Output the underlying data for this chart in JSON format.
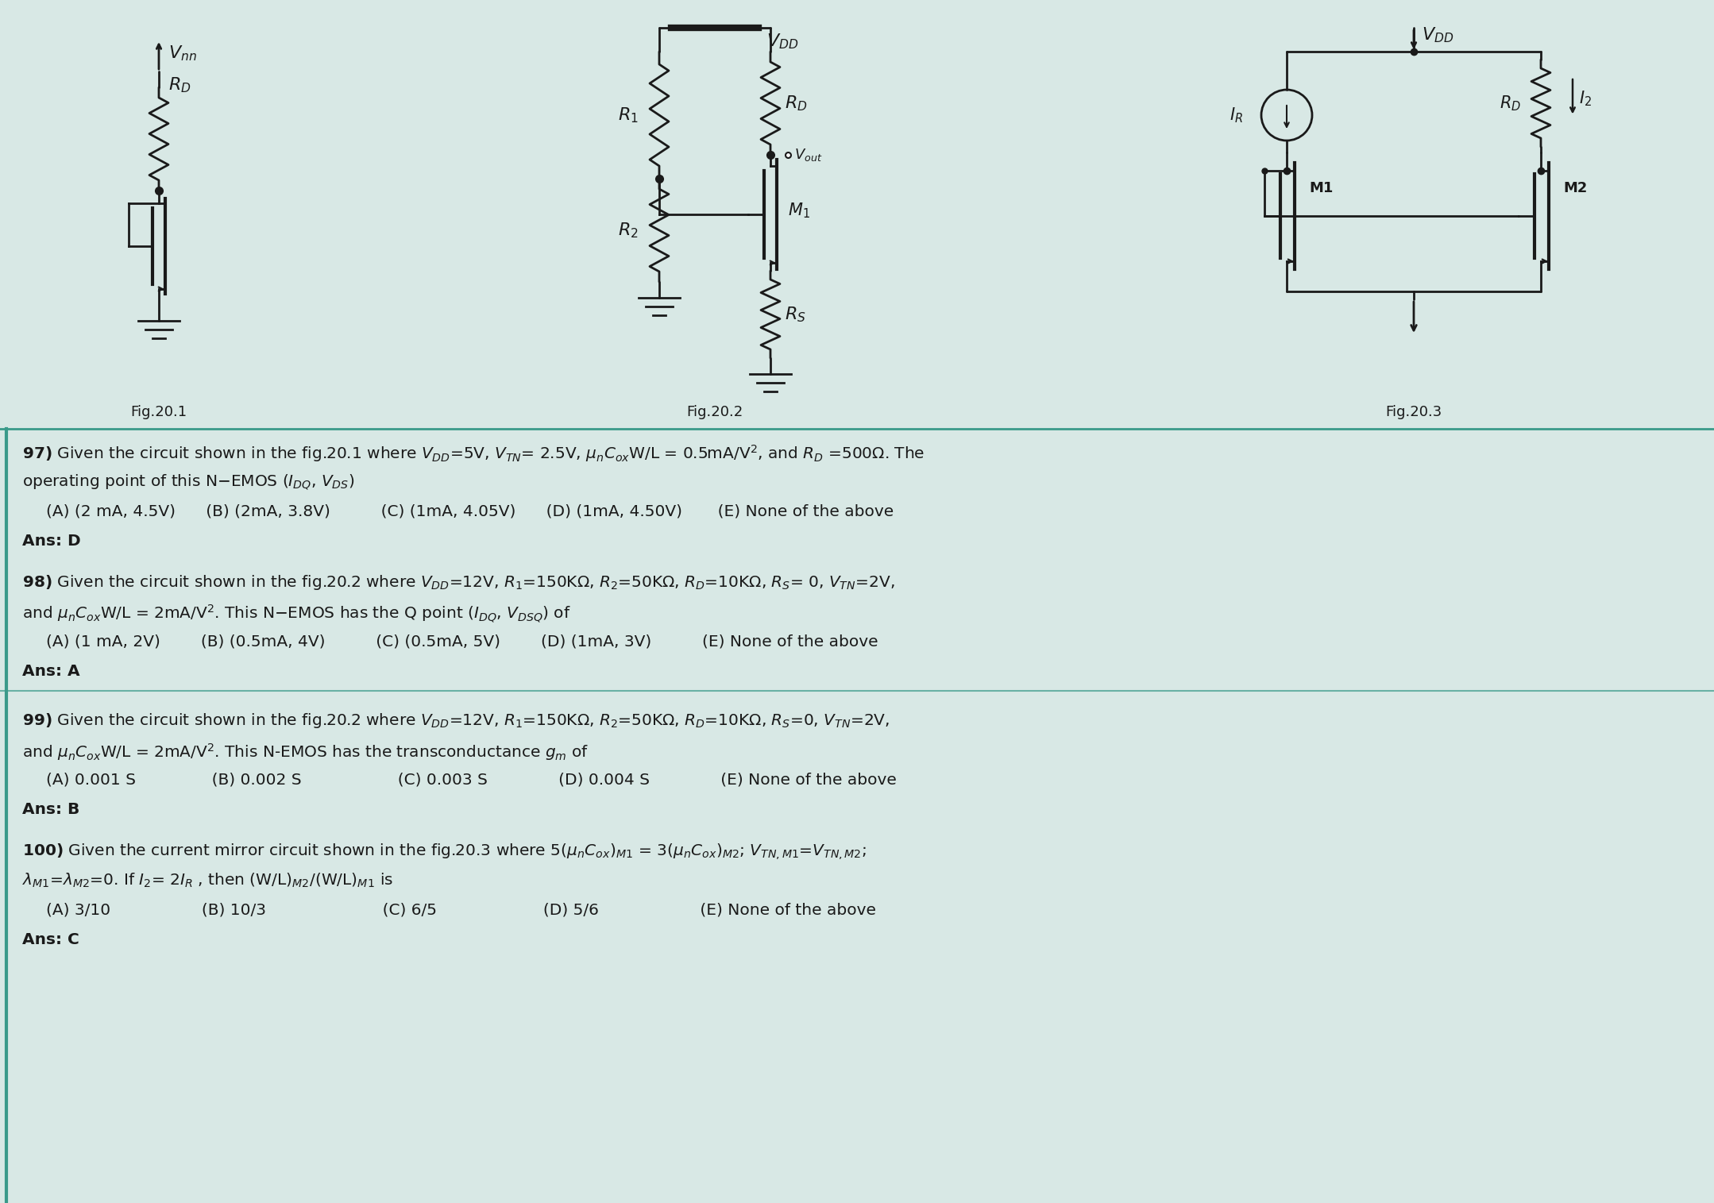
{
  "background_color": "#d8e8e5",
  "fig_width": 21.58,
  "fig_height": 15.15,
  "text_color": "#1a1a1a",
  "circuit_color": "#1a1a1a",
  "divider_color": "#3a9a8a",
  "q97_line1": "97) Given the circuit shown in the fig.20.1 where $V_{DD}$=5V, $V_{TN}$= 2.5V, $\\mu_nC_{ox}$W/L = 0.5mA/V$^2$, and $R_D$ =500$\\Omega$. The",
  "q97_line2": "operating point of this N−EMOS ($I_{DQ}$, $V_{DS}$)",
  "q97_opts": "   (A) (2 mA, 4.5V)        (B) (2mA, 3.8V)             (C) (1mA, 4.05V)         (D) (1mA, 4.50V)         (E) None of the above",
  "q97_ans": "Ans: D",
  "q98_line1": "98) Given the circuit shown in the fig.20.2 where $V_{DD}$=12V, $R_1$=150K$\\Omega$, $R_2$=50K$\\Omega$, $R_D$=10K$\\Omega$, $R_S$= 0, $V_{TN}$=2V,",
  "q98_line2": "and $\\mu_nC_{ox}$W/L = 2mA/V$^2$. This N−EMOS has the Q point ($I_{DQ}$, $V_{DSQ}$) of",
  "q98_opts": "   (A) (1 mA, 2V)          (B) (0.5mA, 4V)            (C) (0.5mA, 5V)          (D) (1mA, 3V)             (E) None of the above",
  "q98_ans": "Ans: A",
  "q99_line1": "99) Given the circuit shown in the fig.20.2 where $V_{DD}$=12V, $R_1$=150K$\\Omega$, $R_2$=50K$\\Omega$, $R_D$=10K$\\Omega$, $R_S$=0, $V_{TN}$=2V,",
  "q99_line2": "and $\\mu_nC_{ox}$W/L = 2mA/V$^2$. This N-EMOS has the transconductance $g_m$ of",
  "q99_opts": "   (A) 0.001 S               (B) 0.002 S                   (C) 0.003 S               (D) 0.004 S               (E) None of the above",
  "q99_ans": "Ans: B",
  "q100_line1": "100) Given the current mirror circuit shown in the fig.20.3 where 5($\\mu_nC_{ox}$)$_{M1}$ = 3($\\mu_nC_{ox}$)$_{M2}$; $V_{TN,M1}$=$V_{TN,M2}$;",
  "q100_line2": "$\\lambda_{M1}$=$\\lambda_{M2}$=0. If $I_2$= 2$I_R$ , then (W/L)$_{M2}$/(W/L)$_{M1}$ is",
  "q100_opts": "   (A) 3/10                  (B) 10/3                       (C) 6/5                     (D) 5/6                    (E) None of the above",
  "q100_ans": "Ans: C"
}
